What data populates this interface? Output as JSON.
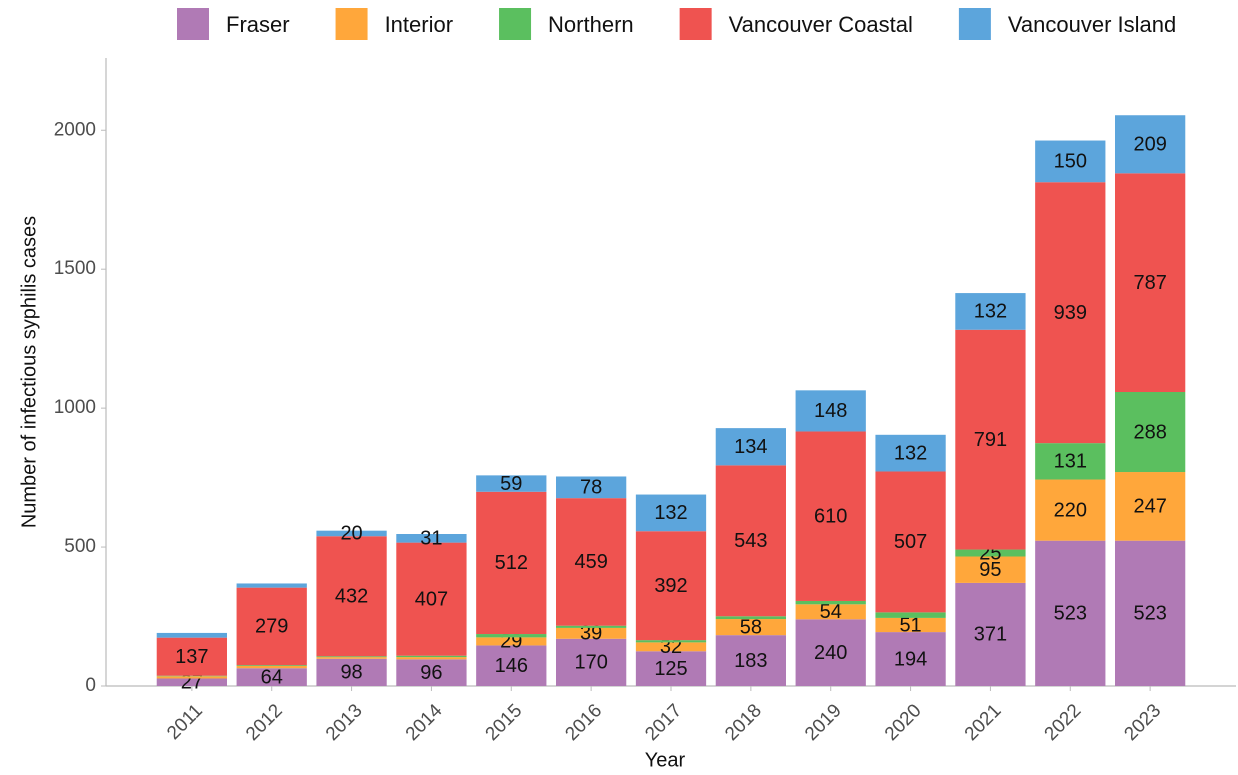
{
  "chart_data": {
    "type": "stacked_bar",
    "x_label": "Year",
    "y_label": "Number of infectious syphilis cases",
    "categories": [
      "2011",
      "2012",
      "2013",
      "2014",
      "2015",
      "2016",
      "2017",
      "2018",
      "2019",
      "2020",
      "2021",
      "2022",
      "2023"
    ],
    "series": [
      {
        "name": "Fraser",
        "color": "#b07ab5",
        "values": [
          27,
          64,
          98,
          96,
          146,
          170,
          125,
          183,
          240,
          194,
          371,
          523,
          523
        ],
        "value_labels": [
          "27",
          "64",
          "98",
          "96",
          "146",
          "170",
          "125",
          "183",
          "240",
          "194",
          "371",
          "523",
          "523"
        ]
      },
      {
        "name": "Interior",
        "color": "#ffa73b",
        "values": [
          8,
          8,
          6,
          8,
          29,
          39,
          32,
          58,
          54,
          51,
          95,
          220,
          247
        ],
        "value_labels": [
          null,
          null,
          null,
          null,
          "29",
          "39",
          "32",
          "58",
          "54",
          "51",
          "95",
          "220",
          "247"
        ]
      },
      {
        "name": "Northern",
        "color": "#5bbf5f",
        "values": [
          2,
          3,
          3,
          5,
          12,
          8,
          8,
          10,
          12,
          20,
          25,
          131,
          288
        ],
        "value_labels": [
          null,
          null,
          null,
          null,
          null,
          null,
          null,
          null,
          null,
          null,
          "25",
          "131",
          "288"
        ]
      },
      {
        "name": "Vancouver Coastal",
        "color": "#ef5350",
        "values": [
          137,
          279,
          432,
          407,
          512,
          459,
          392,
          543,
          610,
          507,
          791,
          939,
          787
        ],
        "value_labels": [
          "137",
          "279",
          "432",
          "407",
          "512",
          "459",
          "392",
          "543",
          "610",
          "507",
          "791",
          "939",
          "787"
        ]
      },
      {
        "name": "Vancouver Island",
        "color": "#5ca5dc",
        "values": [
          17,
          15,
          20,
          31,
          59,
          78,
          132,
          134,
          148,
          132,
          132,
          150,
          209
        ],
        "value_labels": [
          null,
          null,
          "20",
          "31",
          "59",
          "78",
          "132",
          "134",
          "148",
          "132",
          "132",
          "150",
          "209"
        ]
      }
    ],
    "ylim": [
      0,
      2260
    ],
    "yticks": [
      0,
      500,
      1000,
      1500,
      2000
    ],
    "legend": "top"
  }
}
